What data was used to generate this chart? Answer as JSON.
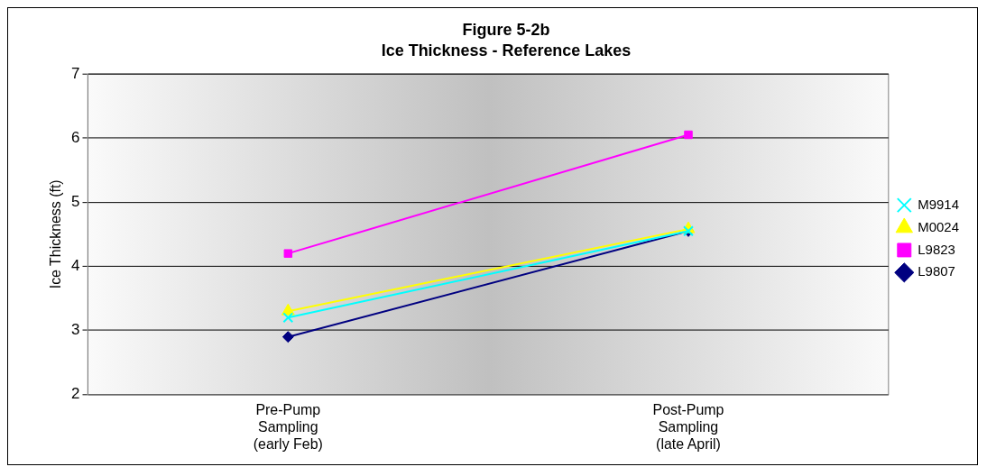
{
  "chart_data": {
    "type": "line",
    "title": "Figure 5-2b",
    "subtitle": "Ice Thickness - Reference Lakes",
    "ylabel": "Ice Thickness (ft)",
    "categories": [
      "Pre-Pump\nSampling\n(early Feb)",
      "Post-Pump\nSampling\n(late April)"
    ],
    "ylim": [
      2,
      7
    ],
    "yticks": [
      2,
      3,
      4,
      5,
      6,
      7
    ],
    "grid": "y",
    "legend": "right",
    "series": [
      {
        "name": "L9807",
        "color": "#000080",
        "marker": "diamond",
        "values": [
          2.9,
          4.55
        ]
      },
      {
        "name": "L9823",
        "color": "#ff00ff",
        "marker": "square",
        "values": [
          4.2,
          6.05
        ]
      },
      {
        "name": "M0024",
        "color": "#ffff00",
        "marker": "triangle",
        "values": [
          3.3,
          4.58
        ]
      },
      {
        "name": "M9914",
        "color": "#00ffff",
        "marker": "cross",
        "values": [
          3.2,
          4.55
        ]
      }
    ]
  }
}
